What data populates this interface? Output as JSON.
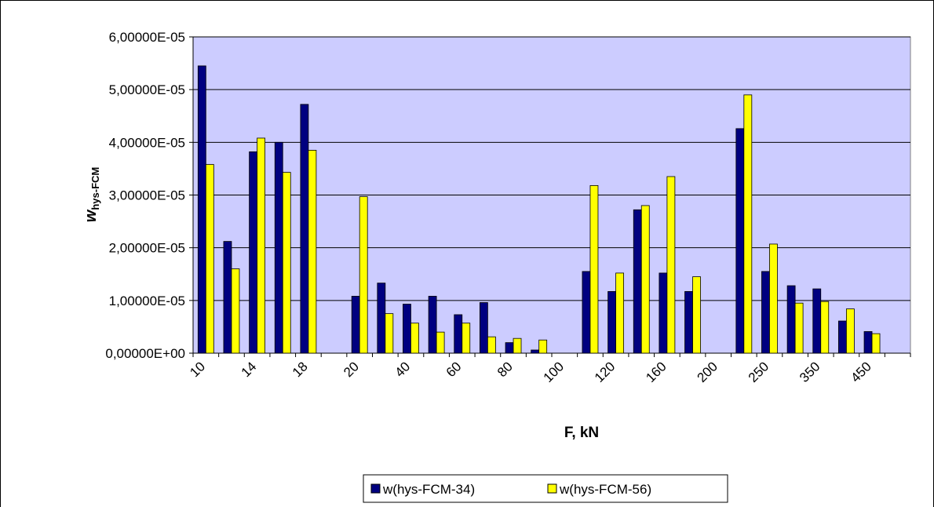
{
  "chart_data": {
    "type": "bar",
    "y_label": "w",
    "y_label_sub": "hys-FCM",
    "x_label": "F, kN",
    "categories": [
      "10",
      null,
      "14",
      null,
      "18",
      null,
      "20",
      null,
      "40",
      null,
      "60",
      null,
      "80",
      null,
      "100",
      null,
      "120",
      null,
      "160",
      null,
      "200",
      null,
      "250",
      null,
      "350",
      null,
      "450",
      null
    ],
    "series": [
      {
        "name": "w(hys-FCM-34)",
        "color": "#000080",
        "values": [
          5.45e-05,
          2.12e-05,
          3.82e-05,
          4e-05,
          4.72e-05,
          null,
          1.08e-05,
          1.33e-05,
          9.3e-06,
          1.08e-05,
          7.3e-06,
          9.6e-06,
          2e-06,
          6e-07,
          null,
          1.55e-05,
          1.17e-05,
          2.72e-05,
          1.52e-05,
          1.17e-05,
          null,
          4.26e-05,
          1.55e-05,
          1.28e-05,
          1.22e-05,
          6.1e-06,
          4.1e-06,
          null
        ]
      },
      {
        "name": "w(hys-FCM-56)",
        "color": "#ffff00",
        "values": [
          3.58e-05,
          1.6e-05,
          4.08e-05,
          3.43e-05,
          3.85e-05,
          null,
          2.97e-05,
          7.5e-06,
          5.7e-06,
          4e-06,
          5.7e-06,
          3.1e-06,
          2.8e-06,
          2.5e-06,
          null,
          3.18e-05,
          1.52e-05,
          2.8e-05,
          3.35e-05,
          1.45e-05,
          null,
          4.9e-05,
          2.07e-05,
          9.5e-06,
          9.8e-06,
          8.4e-06,
          3.7e-06,
          null
        ]
      }
    ],
    "ylim": [
      0,
      6e-05
    ],
    "yticks": [
      {
        "value": 0,
        "label": "0,00000E+00"
      },
      {
        "value": 1e-05,
        "label": "1,00000E-05"
      },
      {
        "value": 2e-05,
        "label": "2,00000E-05"
      },
      {
        "value": 3e-05,
        "label": "3,00000E-05"
      },
      {
        "value": 4e-05,
        "label": "4,00000E-05"
      },
      {
        "value": 5e-05,
        "label": "5,00000E-05"
      },
      {
        "value": 6e-05,
        "label": "6,00000E-05"
      }
    ],
    "grid": true,
    "background": "#ccccff",
    "legend": "bottom"
  }
}
